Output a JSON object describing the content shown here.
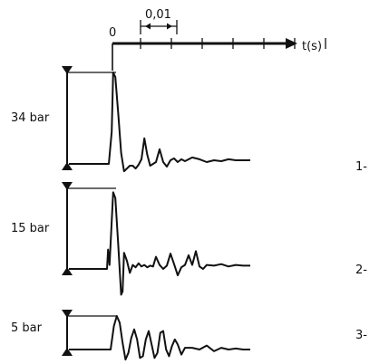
{
  "chart_data": {
    "type": "line",
    "time_axis": {
      "label": "t(s)",
      "origin_label": "0",
      "scale_label": "0,01",
      "tick_count": 7
    },
    "series": [
      {
        "name": "1-",
        "peak_label": "34 bar",
        "peak_bar": 34,
        "x": [
          -0.012,
          -0.001,
          -0.0002,
          0.0002,
          0.0008,
          0.0016,
          0.0024,
          0.0032,
          0.004,
          0.0048,
          0.0056,
          0.0064,
          0.0072,
          0.008,
          0.0088,
          0.0096,
          0.0104,
          0.0112,
          0.012,
          0.013,
          0.014,
          0.015,
          0.016,
          0.017,
          0.018,
          0.019,
          0.02,
          0.022,
          0.024,
          0.026,
          0.028,
          0.03,
          0.032,
          0.034,
          0.036,
          0.038
        ],
        "y": [
          0.0,
          0.0,
          0.35,
          1.0,
          0.95,
          0.55,
          0.12,
          -0.08,
          -0.05,
          -0.02,
          -0.02,
          -0.05,
          -0.01,
          0.05,
          0.28,
          0.1,
          -0.02,
          0.0,
          0.02,
          0.16,
          0.02,
          -0.03,
          0.04,
          0.06,
          0.02,
          0.05,
          0.03,
          0.07,
          0.05,
          0.02,
          0.04,
          0.03,
          0.05,
          0.04,
          0.04,
          0.04
        ]
      },
      {
        "name": "2-",
        "peak_label": "15 bar",
        "peak_bar": 15,
        "x": [
          -0.012,
          -0.0015,
          -0.0012,
          -0.0008,
          0.0002,
          0.0008,
          0.0016,
          0.0024,
          0.0028,
          0.0032,
          0.004,
          0.0048,
          0.0056,
          0.0064,
          0.0072,
          0.008,
          0.0088,
          0.0096,
          0.0104,
          0.0112,
          0.012,
          0.013,
          0.014,
          0.015,
          0.016,
          0.017,
          0.018,
          0.019,
          0.02,
          0.021,
          0.022,
          0.023,
          0.024,
          0.025,
          0.026,
          0.028,
          0.03,
          0.032,
          0.034,
          0.036,
          0.038
        ],
        "y": [
          0.0,
          0.0,
          0.24,
          0.05,
          0.95,
          0.88,
          0.3,
          -0.32,
          -0.28,
          0.2,
          0.1,
          -0.05,
          0.05,
          0.02,
          0.07,
          0.03,
          0.05,
          0.02,
          0.04,
          0.03,
          0.15,
          0.05,
          0.0,
          0.04,
          0.19,
          0.06,
          -0.08,
          0.02,
          0.05,
          0.17,
          0.05,
          0.22,
          0.03,
          0.0,
          0.05,
          0.04,
          0.06,
          0.03,
          0.05,
          0.04,
          0.04
        ]
      },
      {
        "name": "3-",
        "peak_label": "5 bar",
        "peak_bar": 5,
        "x": [
          -0.012,
          -0.0005,
          0.0004,
          0.0012,
          0.002,
          0.0028,
          0.0036,
          0.0044,
          0.0052,
          0.006,
          0.0068,
          0.0076,
          0.0084,
          0.0092,
          0.01,
          0.0108,
          0.0116,
          0.0124,
          0.0132,
          0.014,
          0.0148,
          0.0156,
          0.0164,
          0.0172,
          0.018,
          0.019,
          0.02,
          0.022,
          0.024,
          0.026,
          0.028,
          0.03,
          0.032,
          0.034,
          0.036,
          0.038
        ],
        "y": [
          0.0,
          0.0,
          0.7,
          1.0,
          0.8,
          0.2,
          -0.3,
          -0.1,
          0.35,
          0.6,
          0.3,
          -0.25,
          -0.2,
          0.3,
          0.55,
          0.15,
          -0.25,
          -0.1,
          0.5,
          0.55,
          0.0,
          -0.2,
          0.1,
          0.3,
          0.15,
          -0.15,
          0.05,
          0.05,
          0.0,
          0.12,
          -0.05,
          0.05,
          0.0,
          0.03,
          0.0,
          0.0
        ]
      }
    ]
  }
}
